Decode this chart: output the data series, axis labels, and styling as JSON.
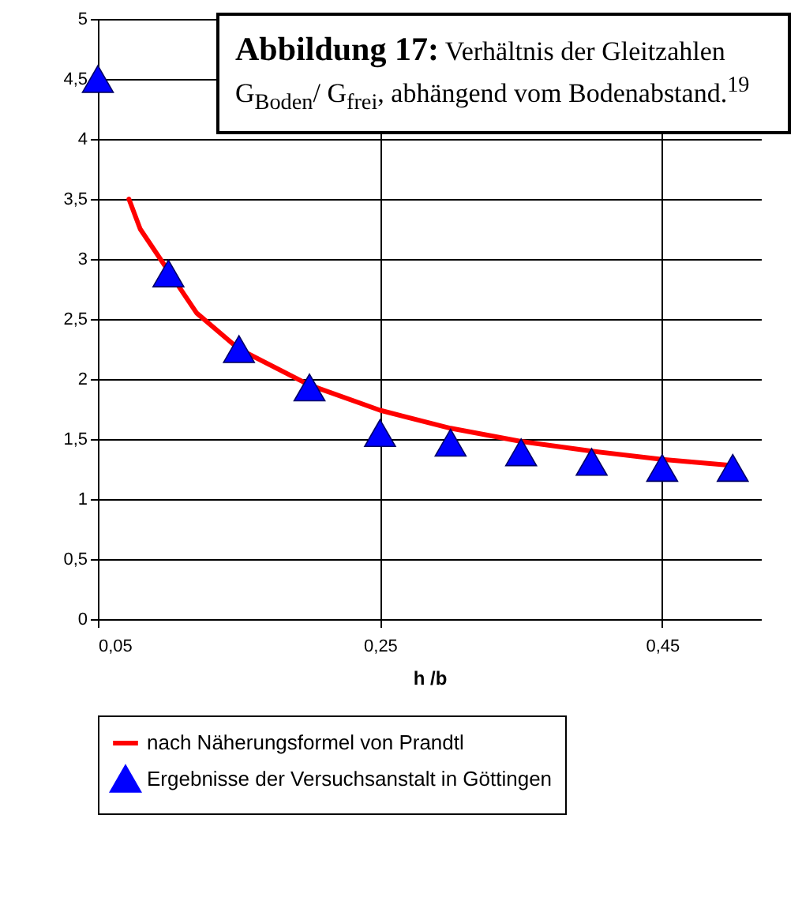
{
  "chart_data": {
    "type": "line",
    "title": "Abbildung 17: Verhältnis der Gleitzahlen G$_{Boden}$/ G$_{frei}$, abhängend vom Bodenabstand.$^{19}$",
    "xlabel": "h /b",
    "series": [
      {
        "name": "nach Näherungsformel von Prandtl",
        "color": "#ff0000",
        "type": "line",
        "marker": "none",
        "x": [
          0.072,
          0.08,
          0.12,
          0.15,
          0.2,
          0.25,
          0.3,
          0.35,
          0.4,
          0.45,
          0.5
        ],
        "values": [
          3.5,
          3.25,
          2.55,
          2.25,
          1.95,
          1.74,
          1.59,
          1.48,
          1.4,
          1.33,
          1.28
        ]
      },
      {
        "name": "Ergebnisse der Versuchsanstalt in Göttingen",
        "color": "#0000ff",
        "type": "scatter",
        "marker": "triangle",
        "x": [
          0.05,
          0.1,
          0.15,
          0.2,
          0.25,
          0.3,
          0.35,
          0.4,
          0.45,
          0.5
        ],
        "values": [
          4.5,
          2.88,
          2.25,
          1.93,
          1.55,
          1.47,
          1.39,
          1.31,
          1.26,
          1.26
        ]
      }
    ],
    "xlim": [
      0.05,
      0.52
    ],
    "xticks": [
      {
        "value": 0.05,
        "label": "0,05"
      },
      {
        "value": 0.25,
        "label": "0,25"
      },
      {
        "value": 0.45,
        "label": "0,45"
      }
    ],
    "ylim": [
      0,
      5
    ],
    "yticks": [
      0,
      {
        "value": 0.5,
        "label": "0,5"
      },
      1,
      {
        "value": 1.5,
        "label": "1,5"
      },
      2,
      {
        "value": 2.5,
        "label": "2,5"
      },
      3,
      {
        "value": 3.5,
        "label": "3,5"
      },
      4,
      {
        "value": 4.5,
        "label": "4,5"
      },
      5
    ],
    "grid": true,
    "legend": "bottom"
  }
}
